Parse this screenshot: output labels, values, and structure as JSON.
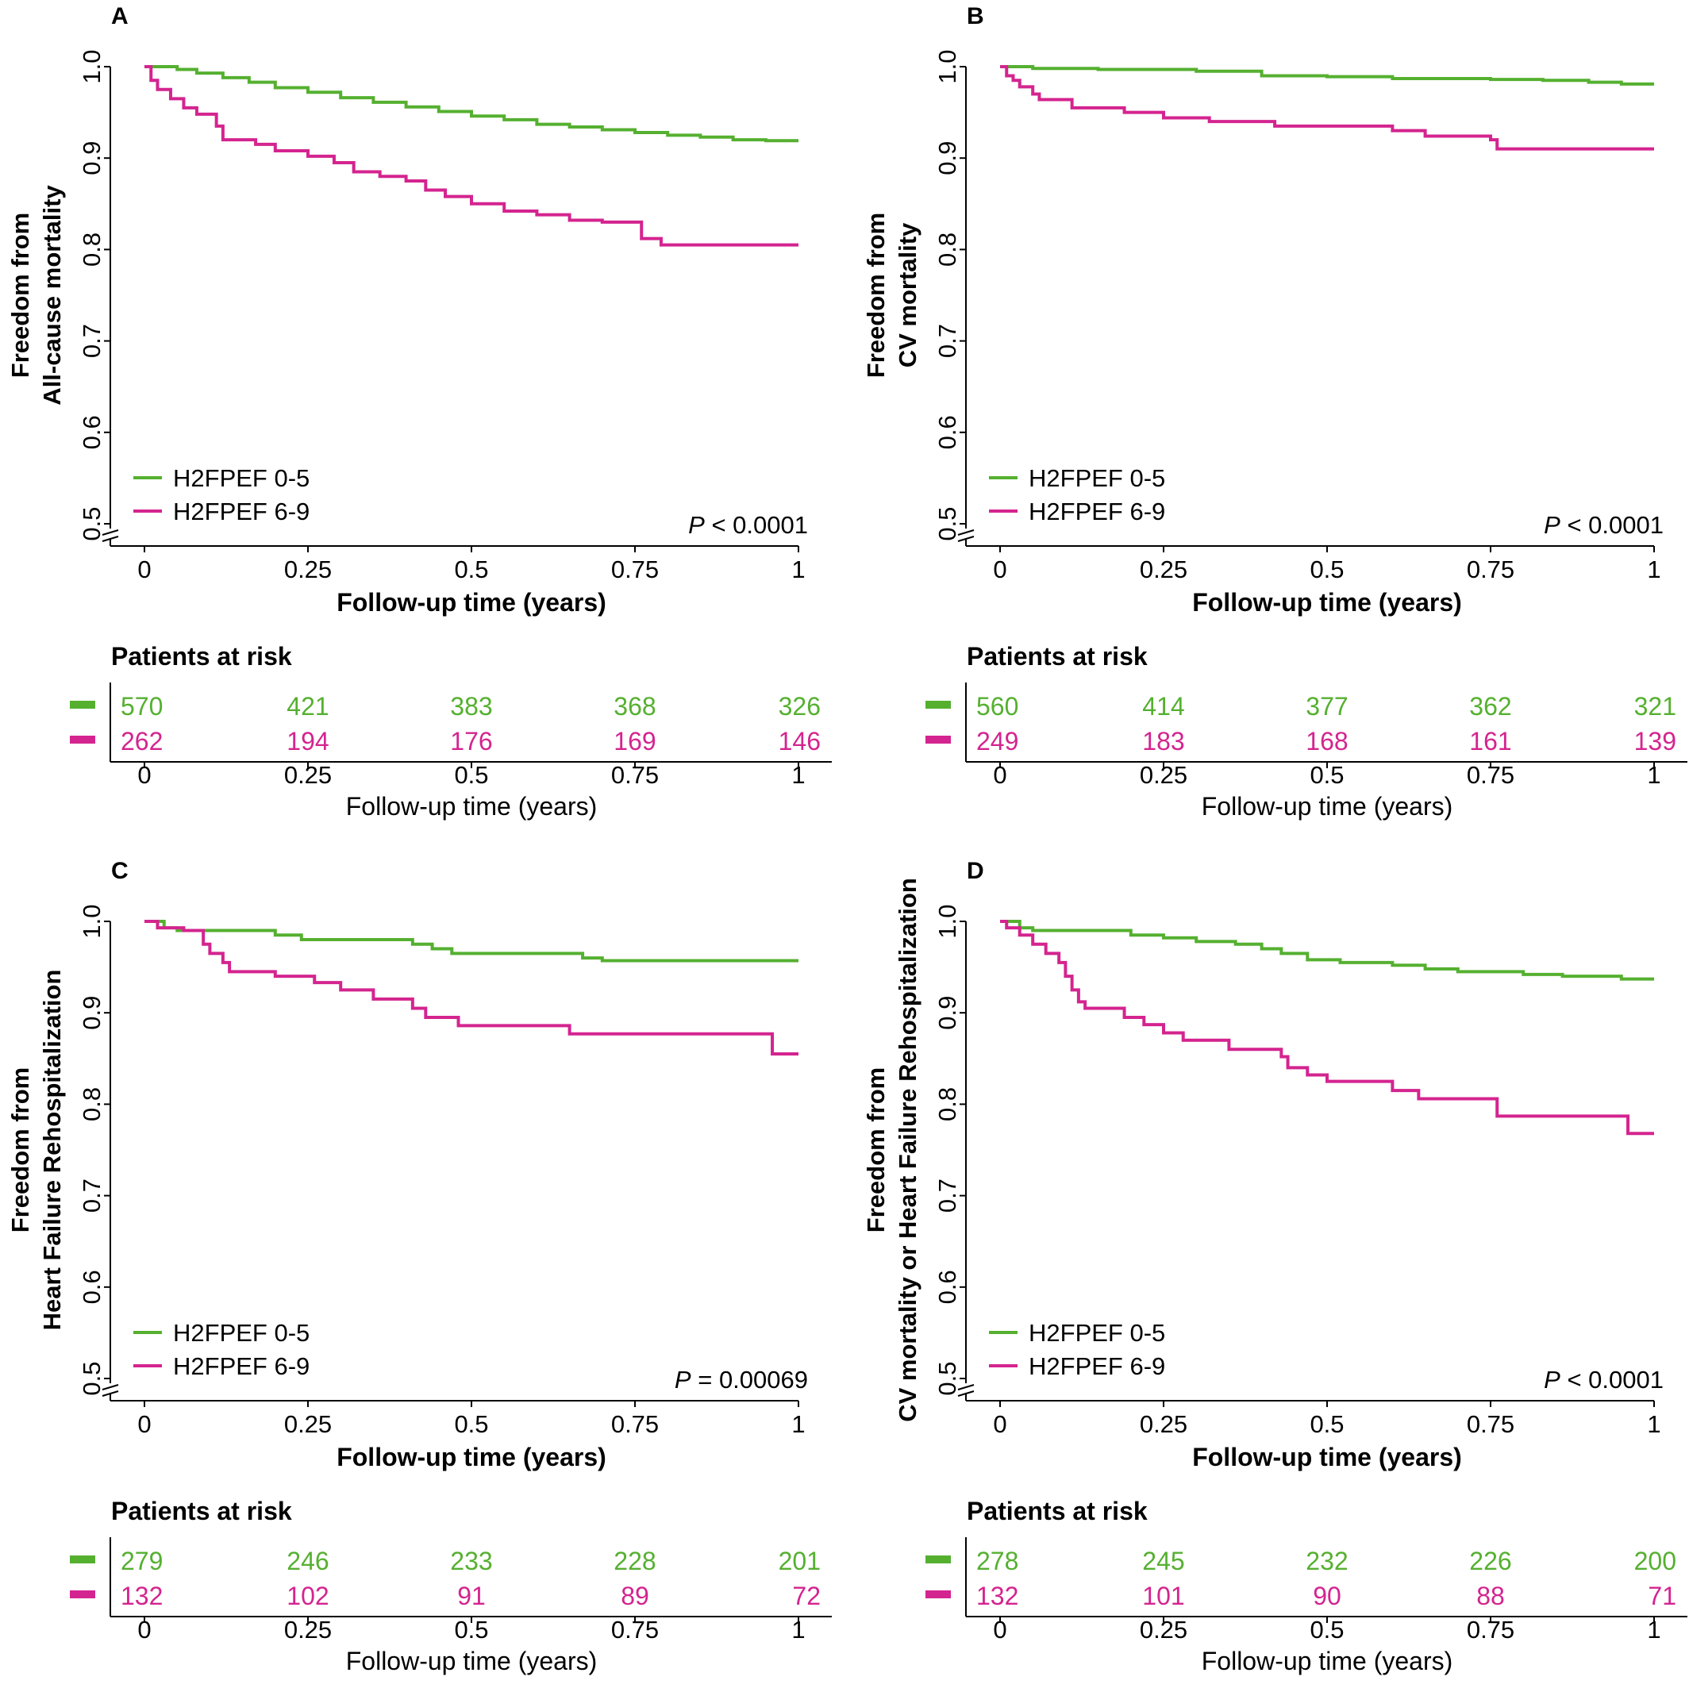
{
  "colors": {
    "low": "#55b030",
    "high": "#d4248f",
    "axis": "#000000"
  },
  "chart_data": [
    {
      "panel": "A",
      "type": "line",
      "ylabel": [
        "Freedom from",
        "All-cause mortality"
      ],
      "xlabel": "Follow-up time (years)",
      "xlim": [
        0,
        1
      ],
      "ylim": [
        0.5,
        1.0
      ],
      "xticks": [
        "0",
        "0.25",
        "0.5",
        "0.75",
        "1"
      ],
      "yticks": [
        "0.5",
        "0.6",
        "0.7",
        "0.8",
        "0.9",
        "1.0"
      ],
      "legend": [
        "H2FPEF 0-5",
        "H2FPEF 6-9"
      ],
      "p_label": "P",
      "p_rest": " < 0.0001",
      "series": [
        {
          "name": "H2FPEF 0-5",
          "points": [
            [
              0,
              1.0
            ],
            [
              0.05,
              0.997
            ],
            [
              0.08,
              0.993
            ],
            [
              0.12,
              0.988
            ],
            [
              0.16,
              0.983
            ],
            [
              0.2,
              0.977
            ],
            [
              0.25,
              0.972
            ],
            [
              0.3,
              0.966
            ],
            [
              0.35,
              0.961
            ],
            [
              0.4,
              0.956
            ],
            [
              0.45,
              0.951
            ],
            [
              0.5,
              0.946
            ],
            [
              0.55,
              0.942
            ],
            [
              0.6,
              0.937
            ],
            [
              0.65,
              0.934
            ],
            [
              0.7,
              0.931
            ],
            [
              0.75,
              0.928
            ],
            [
              0.8,
              0.925
            ],
            [
              0.85,
              0.923
            ],
            [
              0.9,
              0.92
            ],
            [
              0.95,
              0.919
            ],
            [
              1,
              0.919
            ]
          ]
        },
        {
          "name": "H2FPEF 6-9",
          "points": [
            [
              0,
              1.0
            ],
            [
              0.01,
              0.985
            ],
            [
              0.02,
              0.975
            ],
            [
              0.04,
              0.965
            ],
            [
              0.06,
              0.955
            ],
            [
              0.08,
              0.948
            ],
            [
              0.11,
              0.935
            ],
            [
              0.12,
              0.92
            ],
            [
              0.17,
              0.915
            ],
            [
              0.2,
              0.908
            ],
            [
              0.25,
              0.902
            ],
            [
              0.29,
              0.895
            ],
            [
              0.32,
              0.885
            ],
            [
              0.36,
              0.88
            ],
            [
              0.4,
              0.875
            ],
            [
              0.43,
              0.865
            ],
            [
              0.46,
              0.858
            ],
            [
              0.5,
              0.85
            ],
            [
              0.55,
              0.842
            ],
            [
              0.6,
              0.838
            ],
            [
              0.65,
              0.832
            ],
            [
              0.7,
              0.83
            ],
            [
              0.75,
              0.83
            ],
            [
              0.76,
              0.812
            ],
            [
              0.79,
              0.805
            ],
            [
              1,
              0.805
            ]
          ]
        }
      ],
      "risk": {
        "title": "Patients at risk",
        "xlabel": "Follow-up time (years)",
        "low": [
          "570",
          "421",
          "383",
          "368",
          "326"
        ],
        "high": [
          "262",
          "194",
          "176",
          "169",
          "146"
        ]
      }
    },
    {
      "panel": "B",
      "type": "line",
      "ylabel": [
        "Freedom from",
        "CV mortality"
      ],
      "xlabel": "Follow-up time (years)",
      "xlim": [
        0,
        1
      ],
      "ylim": [
        0.5,
        1.0
      ],
      "xticks": [
        "0",
        "0.25",
        "0.5",
        "0.75",
        "1"
      ],
      "yticks": [
        "0.5",
        "0.6",
        "0.7",
        "0.8",
        "0.9",
        "1.0"
      ],
      "legend": [
        "H2FPEF 0-5",
        "H2FPEF 6-9"
      ],
      "p_label": "P",
      "p_rest": " < 0.0001",
      "series": [
        {
          "name": "H2FPEF 0-5",
          "points": [
            [
              0,
              1.0
            ],
            [
              0.05,
              0.998
            ],
            [
              0.15,
              0.997
            ],
            [
              0.3,
              0.995
            ],
            [
              0.4,
              0.99
            ],
            [
              0.5,
              0.989
            ],
            [
              0.6,
              0.987
            ],
            [
              0.75,
              0.986
            ],
            [
              0.83,
              0.985
            ],
            [
              0.9,
              0.983
            ],
            [
              0.95,
              0.981
            ],
            [
              1,
              0.981
            ]
          ]
        },
        {
          "name": "H2FPEF 6-9",
          "points": [
            [
              0,
              1.0
            ],
            [
              0.01,
              0.99
            ],
            [
              0.02,
              0.985
            ],
            [
              0.03,
              0.978
            ],
            [
              0.05,
              0.97
            ],
            [
              0.06,
              0.964
            ],
            [
              0.11,
              0.955
            ],
            [
              0.19,
              0.95
            ],
            [
              0.25,
              0.944
            ],
            [
              0.32,
              0.94
            ],
            [
              0.42,
              0.935
            ],
            [
              0.6,
              0.93
            ],
            [
              0.65,
              0.924
            ],
            [
              0.75,
              0.92
            ],
            [
              0.76,
              0.91
            ],
            [
              1,
              0.91
            ]
          ]
        }
      ],
      "risk": {
        "title": "Patients at risk",
        "xlabel": "Follow-up time (years)",
        "low": [
          "560",
          "414",
          "377",
          "362",
          "321"
        ],
        "high": [
          "249",
          "183",
          "168",
          "161",
          "139"
        ]
      }
    },
    {
      "panel": "C",
      "type": "line",
      "ylabel": [
        "Freedom from",
        "Heart Failure Rehospitalization"
      ],
      "xlabel": "Follow-up time (years)",
      "xlim": [
        0,
        1
      ],
      "ylim": [
        0.5,
        1.0
      ],
      "xticks": [
        "0",
        "0.25",
        "0.5",
        "0.75",
        "1"
      ],
      "yticks": [
        "0.5",
        "0.6",
        "0.7",
        "0.8",
        "0.9",
        "1.0"
      ],
      "legend": [
        "H2FPEF 0-5",
        "H2FPEF 6-9"
      ],
      "p_label": "P",
      "p_rest": " = 0.00069",
      "series": [
        {
          "name": "H2FPEF 0-5",
          "points": [
            [
              0,
              1.0
            ],
            [
              0.02,
              1.0
            ],
            [
              0.03,
              0.993
            ],
            [
              0.05,
              0.99
            ],
            [
              0.17,
              0.99
            ],
            [
              0.2,
              0.985
            ],
            [
              0.24,
              0.98
            ],
            [
              0.38,
              0.98
            ],
            [
              0.41,
              0.975
            ],
            [
              0.44,
              0.97
            ],
            [
              0.47,
              0.965
            ],
            [
              0.64,
              0.965
            ],
            [
              0.67,
              0.96
            ],
            [
              0.7,
              0.957
            ],
            [
              1,
              0.957
            ]
          ]
        },
        {
          "name": "H2FPEF 6-9",
          "points": [
            [
              0,
              1.0
            ],
            [
              0.02,
              0.993
            ],
            [
              0.06,
              0.99
            ],
            [
              0.09,
              0.975
            ],
            [
              0.1,
              0.965
            ],
            [
              0.12,
              0.955
            ],
            [
              0.13,
              0.945
            ],
            [
              0.2,
              0.94
            ],
            [
              0.26,
              0.933
            ],
            [
              0.3,
              0.925
            ],
            [
              0.35,
              0.915
            ],
            [
              0.41,
              0.905
            ],
            [
              0.43,
              0.895
            ],
            [
              0.48,
              0.886
            ],
            [
              0.64,
              0.886
            ],
            [
              0.65,
              0.877
            ],
            [
              0.95,
              0.877
            ],
            [
              0.96,
              0.855
            ],
            [
              1,
              0.855
            ]
          ]
        }
      ],
      "risk": {
        "title": "Patients at risk",
        "xlabel": "Follow-up time (years)",
        "low": [
          "279",
          "246",
          "233",
          "228",
          "201"
        ],
        "high": [
          "132",
          "102",
          "91",
          "89",
          "72"
        ]
      }
    },
    {
      "panel": "D",
      "type": "line",
      "ylabel": [
        "Freedom from",
        "CV mortality or Heart Failure Rehospitalization"
      ],
      "xlabel": "Follow-up time (years)",
      "xlim": [
        0,
        1
      ],
      "ylim": [
        0.5,
        1.0
      ],
      "xticks": [
        "0",
        "0.25",
        "0.5",
        "0.75",
        "1"
      ],
      "yticks": [
        "0.5",
        "0.6",
        "0.7",
        "0.8",
        "0.9",
        "1.0"
      ],
      "legend": [
        "H2FPEF 0-5",
        "H2FPEF 6-9"
      ],
      "p_label": "P",
      "p_rest": " < 0.0001",
      "series": [
        {
          "name": "H2FPEF 0-5",
          "points": [
            [
              0,
              1.0
            ],
            [
              0.02,
              1.0
            ],
            [
              0.03,
              0.993
            ],
            [
              0.05,
              0.99
            ],
            [
              0.17,
              0.99
            ],
            [
              0.2,
              0.985
            ],
            [
              0.25,
              0.982
            ],
            [
              0.3,
              0.978
            ],
            [
              0.36,
              0.975
            ],
            [
              0.4,
              0.97
            ],
            [
              0.43,
              0.965
            ],
            [
              0.47,
              0.958
            ],
            [
              0.52,
              0.955
            ],
            [
              0.6,
              0.952
            ],
            [
              0.65,
              0.948
            ],
            [
              0.7,
              0.945
            ],
            [
              0.8,
              0.942
            ],
            [
              0.86,
              0.94
            ],
            [
              0.95,
              0.937
            ],
            [
              1,
              0.937
            ]
          ]
        },
        {
          "name": "H2FPEF 6-9",
          "points": [
            [
              0,
              1.0
            ],
            [
              0.01,
              0.993
            ],
            [
              0.03,
              0.985
            ],
            [
              0.05,
              0.975
            ],
            [
              0.07,
              0.965
            ],
            [
              0.09,
              0.955
            ],
            [
              0.1,
              0.94
            ],
            [
              0.11,
              0.925
            ],
            [
              0.12,
              0.912
            ],
            [
              0.13,
              0.905
            ],
            [
              0.19,
              0.895
            ],
            [
              0.22,
              0.887
            ],
            [
              0.25,
              0.878
            ],
            [
              0.28,
              0.87
            ],
            [
              0.35,
              0.86
            ],
            [
              0.43,
              0.852
            ],
            [
              0.44,
              0.84
            ],
            [
              0.47,
              0.832
            ],
            [
              0.5,
              0.825
            ],
            [
              0.6,
              0.815
            ],
            [
              0.64,
              0.806
            ],
            [
              0.75,
              0.806
            ],
            [
              0.76,
              0.787
            ],
            [
              0.95,
              0.787
            ],
            [
              0.96,
              0.768
            ],
            [
              1,
              0.768
            ]
          ]
        }
      ],
      "risk": {
        "title": "Patients at risk",
        "xlabel": "Follow-up time (years)",
        "low": [
          "278",
          "245",
          "232",
          "226",
          "200"
        ],
        "high": [
          "132",
          "101",
          "90",
          "88",
          "71"
        ]
      }
    }
  ]
}
